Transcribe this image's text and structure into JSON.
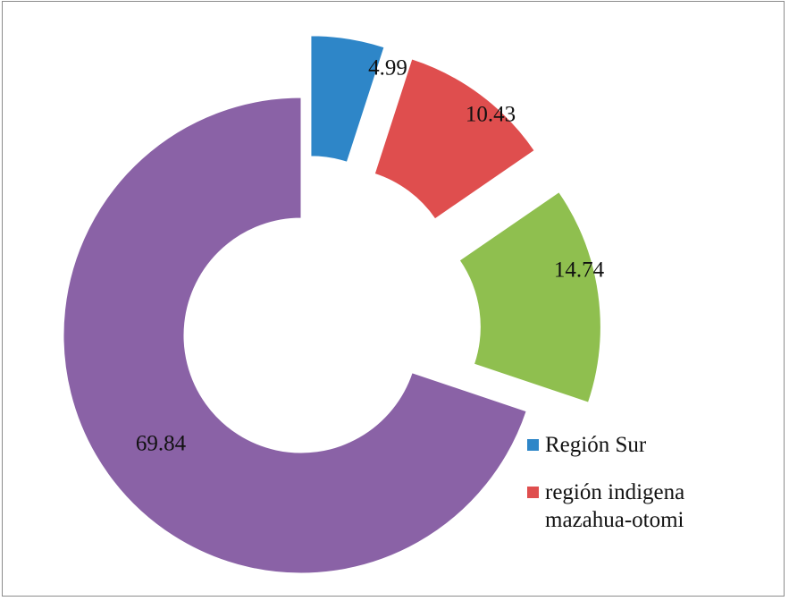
{
  "chart_data": {
    "type": "pie",
    "style": "donut-exploded",
    "values": [
      4.99,
      10.43,
      14.74,
      69.84
    ],
    "colors": [
      "#2e86c8",
      "#df4e4e",
      "#8fbf4f",
      "#8a62a6"
    ],
    "legend": [
      {
        "label": "Región Sur",
        "color": "#2e86c8"
      },
      {
        "label": "región indigena mazahua-otomi",
        "color": "#df4e4e"
      }
    ],
    "legend_position": "right",
    "title": "",
    "data_labels": [
      "4.99",
      "10.43",
      "14.74",
      "69.84"
    ]
  }
}
